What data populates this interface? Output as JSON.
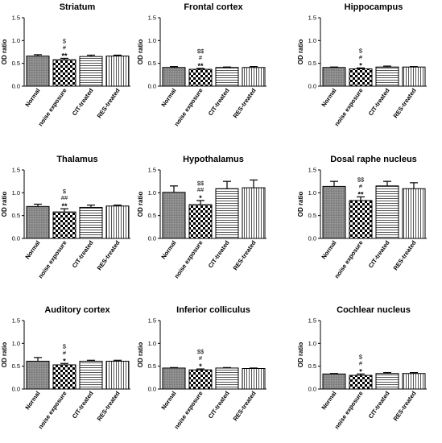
{
  "ylabel": "OD ratio",
  "chart_data": [
    {
      "type": "bar",
      "title": "Striatum",
      "ylabel": "OD ratio",
      "ylim": [
        0,
        1.5
      ],
      "yticks": [
        "0.0",
        "0.5",
        "1.0",
        "1.5"
      ],
      "categories": [
        "Normal",
        "noise exposure",
        "CIT-treated",
        "RES-treated"
      ],
      "values": [
        0.66,
        0.58,
        0.65,
        0.66
      ],
      "errors": [
        0.03,
        0.03,
        0.03,
        0.02
      ],
      "annotations": [
        [],
        [
          "$",
          "#",
          "**"
        ],
        [],
        []
      ]
    },
    {
      "type": "bar",
      "title": "Frontal cortex",
      "ylabel": "OD ratio",
      "ylim": [
        0,
        1.5
      ],
      "yticks": [
        "0.0",
        "0.5",
        "1.0",
        "1.5"
      ],
      "categories": [
        "Normal",
        "noise exposure",
        "CIT-treated",
        "RES-treated"
      ],
      "values": [
        0.41,
        0.37,
        0.41,
        0.41
      ],
      "errors": [
        0.02,
        0.02,
        0.01,
        0.02
      ],
      "annotations": [
        [],
        [
          "$$",
          "#",
          "**"
        ],
        [],
        []
      ]
    },
    {
      "type": "bar",
      "title": "Hippocampus",
      "ylabel": "OD ratio",
      "ylim": [
        0,
        1.5
      ],
      "yticks": [
        "0.0",
        "0.5",
        "1.0",
        "1.5"
      ],
      "categories": [
        "Normal",
        "noise exposure",
        "CIT-treated",
        "RES-treated"
      ],
      "values": [
        0.41,
        0.38,
        0.42,
        0.42
      ],
      "errors": [
        0.01,
        0.02,
        0.02,
        0.01
      ],
      "annotations": [
        [],
        [
          "$",
          "#",
          "*"
        ],
        [],
        []
      ]
    },
    {
      "type": "bar",
      "title": "Thalamus",
      "ylabel": "OD ratio",
      "ylim": [
        0,
        1.5
      ],
      "yticks": [
        "0.0",
        "0.5",
        "1.0",
        "1.5"
      ],
      "categories": [
        "Normal",
        "noise exposure",
        "CIT-treated",
        "RES-treated"
      ],
      "values": [
        0.7,
        0.58,
        0.68,
        0.71
      ],
      "errors": [
        0.05,
        0.07,
        0.05,
        0.02
      ],
      "annotations": [
        [],
        [
          "$",
          "##",
          "**"
        ],
        [],
        []
      ]
    },
    {
      "type": "bar",
      "title": "Hypothalamus",
      "ylabel": "OD ratio",
      "ylim": [
        0,
        1.5
      ],
      "yticks": [
        "0.0",
        "0.5",
        "1.0",
        "1.5"
      ],
      "categories": [
        "Normal",
        "noise exposure",
        "CIT-treated",
        "RES-treated"
      ],
      "values": [
        1.01,
        0.74,
        1.09,
        1.11
      ],
      "errors": [
        0.14,
        0.09,
        0.16,
        0.17
      ],
      "annotations": [
        [],
        [
          "$$",
          "##",
          "*"
        ],
        [],
        []
      ]
    },
    {
      "type": "bar",
      "title": "Dosal raphe nucleus",
      "ylabel": "OD ratio",
      "ylim": [
        0,
        1.5
      ],
      "yticks": [
        "0.0",
        "0.5",
        "1.0",
        "1.5"
      ],
      "categories": [
        "Normal",
        "noise exposure",
        "CIT-treated",
        "RES-treated"
      ],
      "values": [
        1.14,
        0.83,
        1.15,
        1.09
      ],
      "errors": [
        0.11,
        0.08,
        0.1,
        0.13
      ],
      "annotations": [
        [],
        [
          "$$",
          "#",
          "**"
        ],
        [],
        []
      ]
    },
    {
      "type": "bar",
      "title": "Auditory cortex",
      "ylabel": "OD ratio",
      "ylim": [
        0,
        1.5
      ],
      "yticks": [
        "0.0",
        "0.5",
        "1.0",
        "1.5"
      ],
      "categories": [
        "Normal",
        "noise exposure",
        "CIT-treated",
        "RES-treated"
      ],
      "values": [
        0.61,
        0.53,
        0.61,
        0.61
      ],
      "errors": [
        0.08,
        0.03,
        0.02,
        0.02
      ],
      "annotations": [
        [],
        [
          "$",
          "#",
          "*"
        ],
        [],
        []
      ]
    },
    {
      "type": "bar",
      "title": "Inferior colliculus",
      "ylabel": "OD ratio",
      "ylim": [
        0,
        1.5
      ],
      "yticks": [
        "0.0",
        "0.5",
        "1.0",
        "1.5"
      ],
      "categories": [
        "Normal",
        "noise exposure",
        "CIT-treated",
        "RES-treated"
      ],
      "values": [
        0.46,
        0.42,
        0.46,
        0.45
      ],
      "errors": [
        0.01,
        0.02,
        0.01,
        0.01
      ],
      "annotations": [
        [],
        [
          "$$",
          "#",
          "*"
        ],
        [],
        []
      ]
    },
    {
      "type": "bar",
      "title": "Cochlear nucleus",
      "ylabel": "OD ratio",
      "ylim": [
        0,
        1.5
      ],
      "yticks": [
        "0.0",
        "0.5",
        "1.0",
        "1.5"
      ],
      "categories": [
        "Normal",
        "noise exposure",
        "CIT-treated",
        "RES-treated"
      ],
      "values": [
        0.33,
        0.3,
        0.34,
        0.34
      ],
      "errors": [
        0.01,
        0.03,
        0.02,
        0.02
      ],
      "annotations": [
        [],
        [
          "$",
          "#",
          "*"
        ],
        [],
        []
      ]
    }
  ],
  "colors": {
    "bar_outline": "#000000",
    "bar_fill_normal": "#8a8a8a",
    "text": "#000000"
  }
}
